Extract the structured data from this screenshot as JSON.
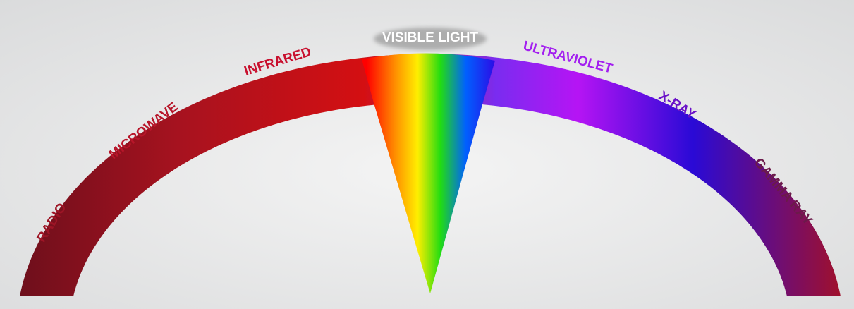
{
  "bands": [
    {
      "label": "RADIO"
    },
    {
      "label": "MICROWAVE"
    },
    {
      "label": "INFRARED"
    },
    {
      "label": "VISIBLE LIGHT"
    },
    {
      "label": "ULTRAVIOLET"
    },
    {
      "label": "X-RAY"
    },
    {
      "label": "GAMMA RAY"
    }
  ]
}
